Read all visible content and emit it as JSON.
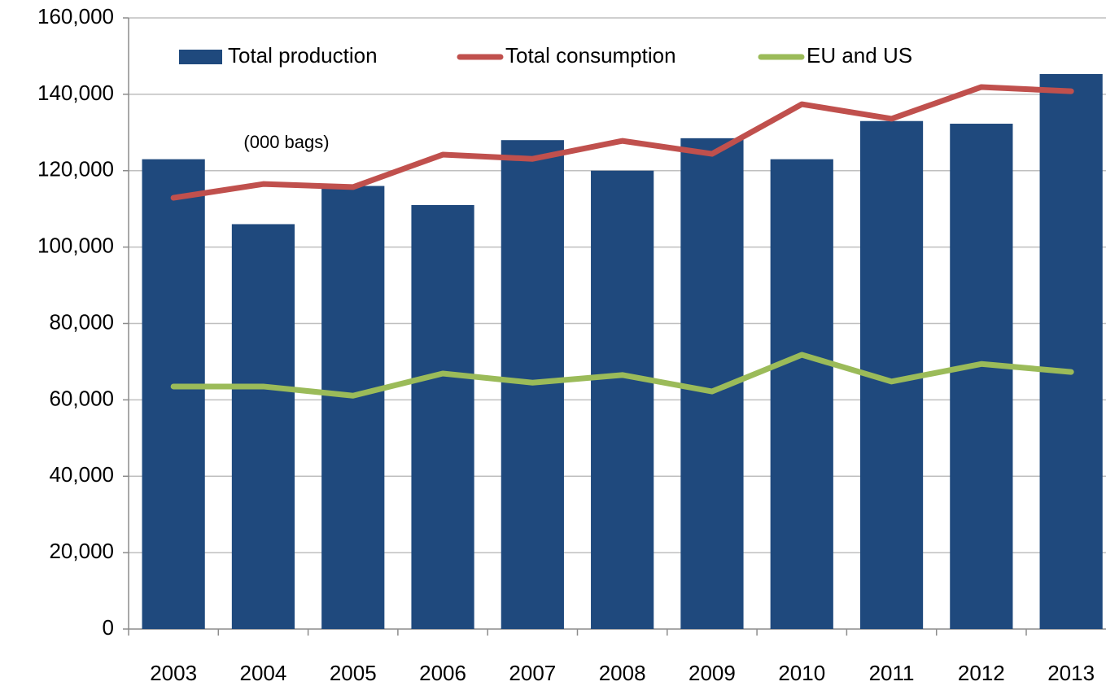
{
  "chart_data": {
    "type": "bar_line",
    "annotation": "(000 bags)",
    "categories": [
      "2003",
      "2004",
      "2005",
      "2006",
      "2007",
      "2008",
      "2009",
      "2010",
      "2011",
      "2012",
      "2013"
    ],
    "series": [
      {
        "name": "Total production",
        "type": "bar",
        "color": "#1f497d",
        "values": [
          123000,
          106000,
          116000,
          111000,
          128000,
          120000,
          128500,
          123000,
          133000,
          132300,
          145300
        ]
      },
      {
        "name": "Total consumption",
        "type": "line",
        "color": "#c0504d",
        "values": [
          112900,
          116500,
          115700,
          124200,
          123100,
          127800,
          124400,
          137400,
          133600,
          141900,
          140800
        ]
      },
      {
        "name": "EU and US",
        "type": "line",
        "color": "#9bbb59",
        "values": [
          63500,
          63500,
          61100,
          66900,
          64500,
          66500,
          62200,
          71800,
          64800,
          69400,
          67300
        ]
      }
    ],
    "ylim": [
      0,
      160000
    ],
    "yticks": [
      0,
      {
        "value": 20000,
        "label": "20,000"
      },
      {
        "value": 40000,
        "label": "40,000"
      },
      {
        "value": 60000,
        "label": "60,000"
      },
      {
        "value": 80000,
        "label": "80,000"
      },
      {
        "value": 100000,
        "label": "100,000"
      },
      {
        "value": 120000,
        "label": "120,000"
      },
      {
        "value": 140000,
        "label": "140,000"
      },
      {
        "value": 160000,
        "label": "160,000"
      }
    ],
    "grid": true,
    "legend": "top"
  }
}
